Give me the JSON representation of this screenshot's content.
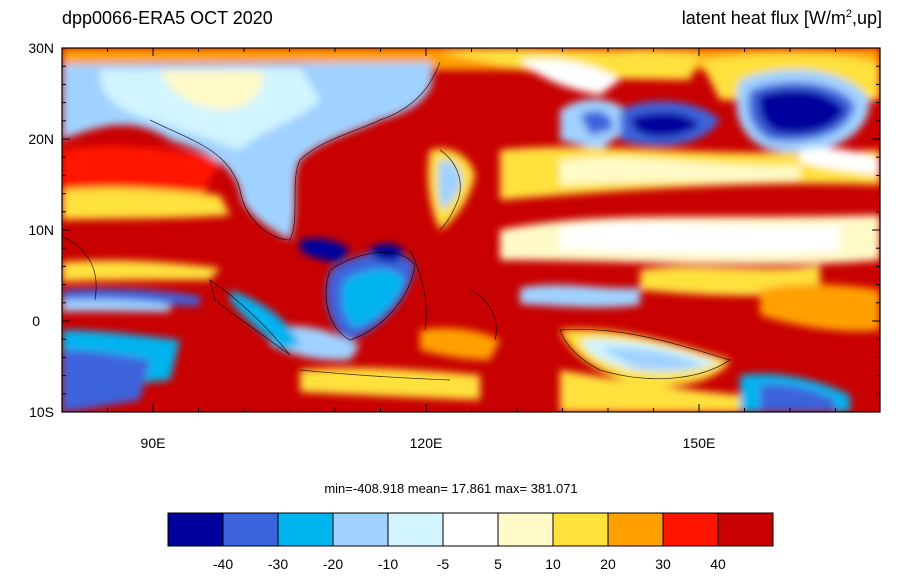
{
  "title_left": "dpp0066-ERA5  OCT 2020",
  "title_right": {
    "prefix": "latent heat flux [W/m",
    "sup": "2",
    "suffix": ",up]"
  },
  "map": {
    "lat_labels": [
      "30N",
      "20N",
      "10N",
      "0",
      "10S"
    ],
    "lon_labels": [
      "90E",
      "120E",
      "150E"
    ]
  },
  "stats": {
    "text": "min=-408.918  mean=  17.861  max= 381.071"
  },
  "colorbar": {
    "colors": [
      "#00009c",
      "#3c64dc",
      "#00b4f0",
      "#a0d2ff",
      "#d2f5ff",
      "#ffffff",
      "#fffac8",
      "#ffe13c",
      "#ffa000",
      "#ff1400",
      "#c80000"
    ],
    "labels": [
      "-40",
      "-30",
      "-20",
      "-10",
      "-5",
      "5",
      "10",
      "20",
      "30",
      "40"
    ]
  }
}
